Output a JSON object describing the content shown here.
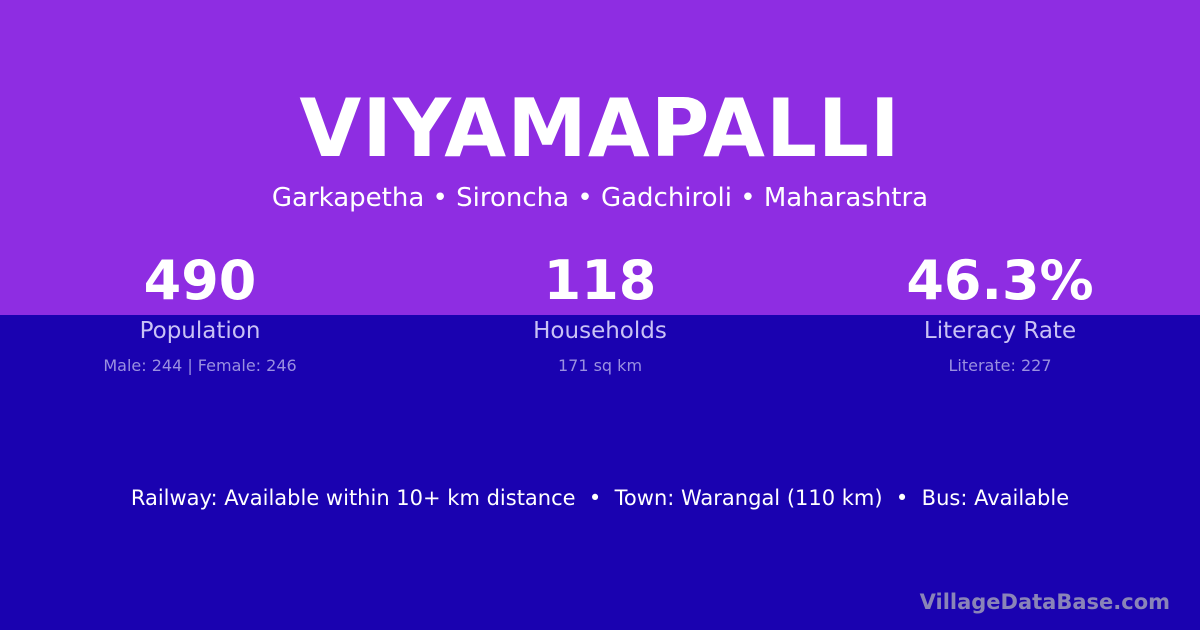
{
  "title": "VIYAMAPALLI",
  "subtitle": "Garkapetha • Sironcha • Gadchiroli • Maharashtra",
  "stats": [
    {
      "value": "490",
      "label": "Population",
      "detail": "Male: 244 | Female: 246"
    },
    {
      "value": "118",
      "label": "Households",
      "detail": "171 sq km"
    },
    {
      "value": "46.3%",
      "label": "Literacy Rate",
      "detail": "Literate: 227"
    }
  ],
  "info": "Railway: Available within 10+ km distance  •  Town: Warangal (110 km)  •  Bus: Available",
  "brand": "VillageDataBase.com",
  "colors": {
    "top": "#8e2de2",
    "bottom": "#1a02b0"
  }
}
